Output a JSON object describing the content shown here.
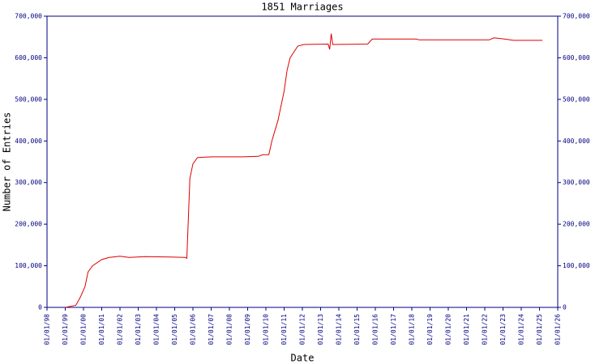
{
  "chart_data": {
    "type": "line",
    "title": "1851 Marriages",
    "x_label": "Date",
    "y_label": "Number of Entries",
    "x": [
      "01/01/99",
      "01/08/99",
      "01/11/99",
      "01/02/00",
      "01/04/00",
      "01/07/00",
      "01/01/01",
      "01/06/01",
      "01/01/02",
      "01/07/02",
      "01/06/03",
      "01/10/04",
      "01/08/05",
      "01/09/05",
      "01/11/05",
      "01/01/06",
      "01/04/06",
      "01/01/07",
      "01/10/08",
      "01/08/09",
      "01/11/09",
      "01/03/10",
      "01/05/10",
      "01/07/10",
      "01/09/10",
      "01/01/11",
      "01/03/11",
      "01/05/11",
      "01/10/11",
      "01/02/12",
      "01/06/13",
      "01/07/13",
      "01/08/13",
      "01/09/13",
      "01/08/15",
      "01/11/15",
      "01/04/18",
      "01/06/18",
      "01/04/22",
      "01/07/22",
      "01/02/23",
      "01/08/23",
      "01/03/25"
    ],
    "series": [
      {
        "color": "#dd0000",
        "values": [
          0,
          5000,
          25000,
          50000,
          85000,
          100000,
          115000,
          120000,
          123000,
          120000,
          122000,
          121000,
          120000,
          118000,
          310000,
          345000,
          360000,
          362000,
          362000,
          363000,
          367000,
          367000,
          400000,
          425000,
          450000,
          520000,
          570000,
          600000,
          628000,
          632000,
          633000,
          620000,
          658000,
          632000,
          633000,
          645000,
          645000,
          643000,
          643000,
          648000,
          645000,
          642000,
          642000
        ]
      }
    ],
    "xlim": [
      "01/01/98",
      "01/01/26"
    ],
    "xticks": [
      "01/01/98",
      "01/01/99",
      "01/01/00",
      "01/01/01",
      "01/01/02",
      "01/01/03",
      "01/01/04",
      "01/01/05",
      "01/01/06",
      "01/01/07",
      "01/01/08",
      "01/01/09",
      "01/01/10",
      "01/01/11",
      "01/01/12",
      "01/01/13",
      "01/01/14",
      "01/01/15",
      "01/01/16",
      "01/01/17",
      "01/01/18",
      "01/01/19",
      "01/01/20",
      "01/01/21",
      "01/01/22",
      "01/01/23",
      "01/01/24",
      "01/01/25",
      "01/01/26"
    ],
    "ylim": [
      0,
      700000
    ],
    "yticks": [
      0,
      {
        "value": 100000,
        "label": "100,000"
      },
      {
        "value": 200000,
        "label": "200,000"
      },
      {
        "value": 300000,
        "label": "300,000"
      },
      {
        "value": 400000,
        "label": "400,000"
      },
      {
        "value": 500000,
        "label": "500,000"
      },
      {
        "value": 600000,
        "label": "600,000"
      },
      {
        "value": 700000,
        "label": "700,000"
      }
    ],
    "axis_color": "#000080"
  }
}
